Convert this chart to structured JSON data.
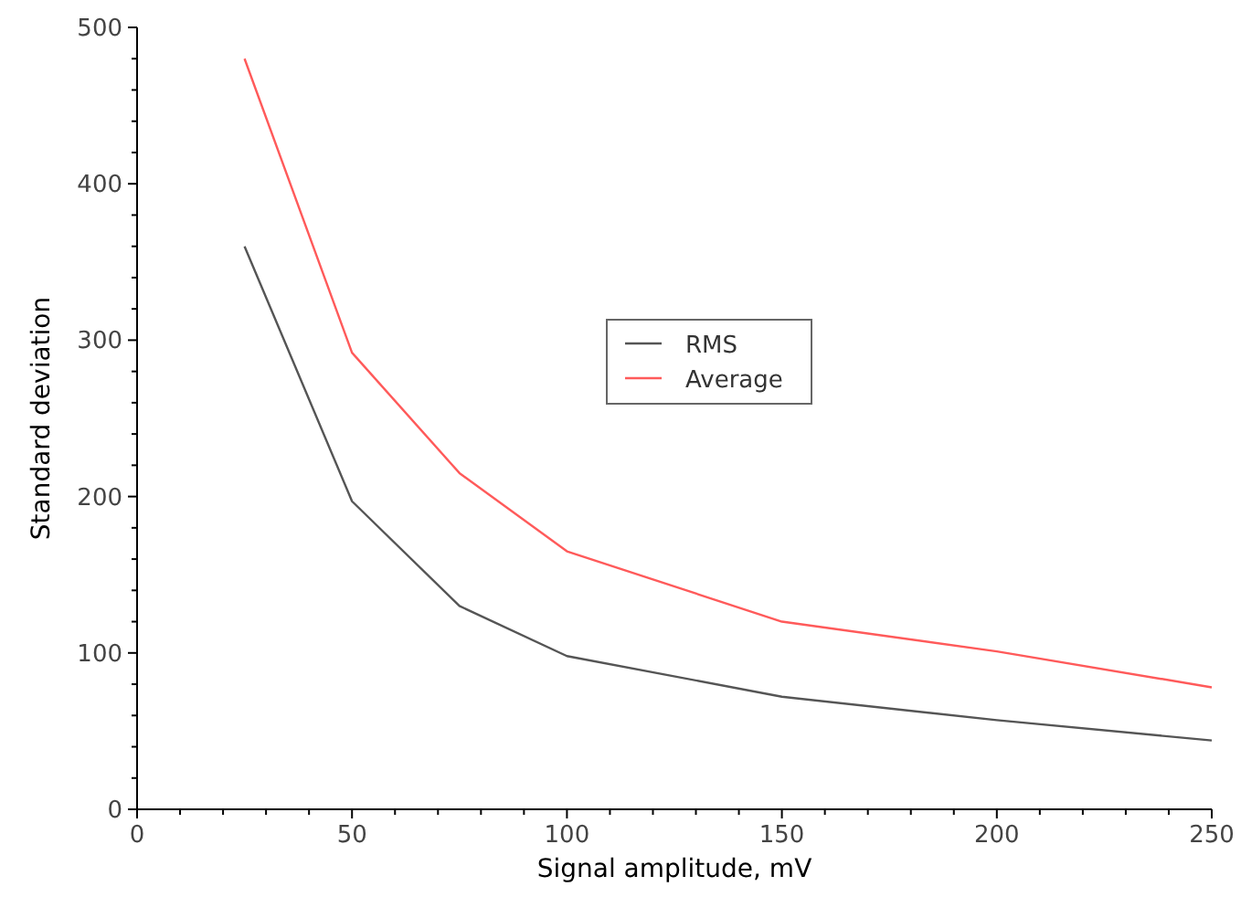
{
  "chart_data": {
    "type": "line",
    "xlabel": "Signal amplitude, mV",
    "ylabel": "Standard deviation",
    "x": [
      25,
      50,
      75,
      100,
      150,
      200,
      250
    ],
    "series": [
      {
        "name": "RMS",
        "color": "#555555",
        "values": [
          360,
          197,
          130,
          98,
          72,
          57,
          44
        ]
      },
      {
        "name": "Average",
        "color": "#ff5a5a",
        "values": [
          480,
          292,
          215,
          165,
          120,
          101,
          78
        ]
      }
    ],
    "xlim": [
      0,
      250
    ],
    "ylim": [
      0,
      500
    ],
    "xticks": [
      0,
      {
        "value": 10,
        "label": null
      },
      {
        "value": 20,
        "label": null
      },
      {
        "value": 30,
        "label": null
      },
      {
        "value": 40,
        "label": null
      },
      50,
      {
        "value": 60,
        "label": null
      },
      {
        "value": 70,
        "label": null
      },
      {
        "value": 80,
        "label": null
      },
      {
        "value": 90,
        "label": null
      },
      100,
      {
        "value": 110,
        "label": null
      },
      {
        "value": 120,
        "label": null
      },
      {
        "value": 130,
        "label": null
      },
      {
        "value": 140,
        "label": null
      },
      150,
      {
        "value": 160,
        "label": null
      },
      {
        "value": 170,
        "label": null
      },
      {
        "value": 180,
        "label": null
      },
      {
        "value": 190,
        "label": null
      },
      200,
      {
        "value": 210,
        "label": null
      },
      {
        "value": 220,
        "label": null
      },
      {
        "value": 230,
        "label": null
      },
      {
        "value": 240,
        "label": null
      },
      250
    ],
    "yticks": [
      0,
      {
        "value": 20,
        "label": null
      },
      {
        "value": 40,
        "label": null
      },
      {
        "value": 60,
        "label": null
      },
      {
        "value": 80,
        "label": null
      },
      100,
      {
        "value": 120,
        "label": null
      },
      {
        "value": 140,
        "label": null
      },
      {
        "value": 160,
        "label": null
      },
      {
        "value": 180,
        "label": null
      },
      200,
      {
        "value": 220,
        "label": null
      },
      {
        "value": 240,
        "label": null
      },
      {
        "value": 260,
        "label": null
      },
      {
        "value": 280,
        "label": null
      },
      300,
      {
        "value": 320,
        "label": null
      },
      {
        "value": 340,
        "label": null
      },
      {
        "value": 360,
        "label": null
      },
      {
        "value": 380,
        "label": null
      },
      400,
      {
        "value": 420,
        "label": null
      },
      {
        "value": 440,
        "label": null
      },
      {
        "value": 460,
        "label": null
      },
      {
        "value": 480,
        "label": null
      },
      500
    ],
    "legend": "center",
    "marker": "none",
    "line_style": "solid",
    "grid": false
  }
}
